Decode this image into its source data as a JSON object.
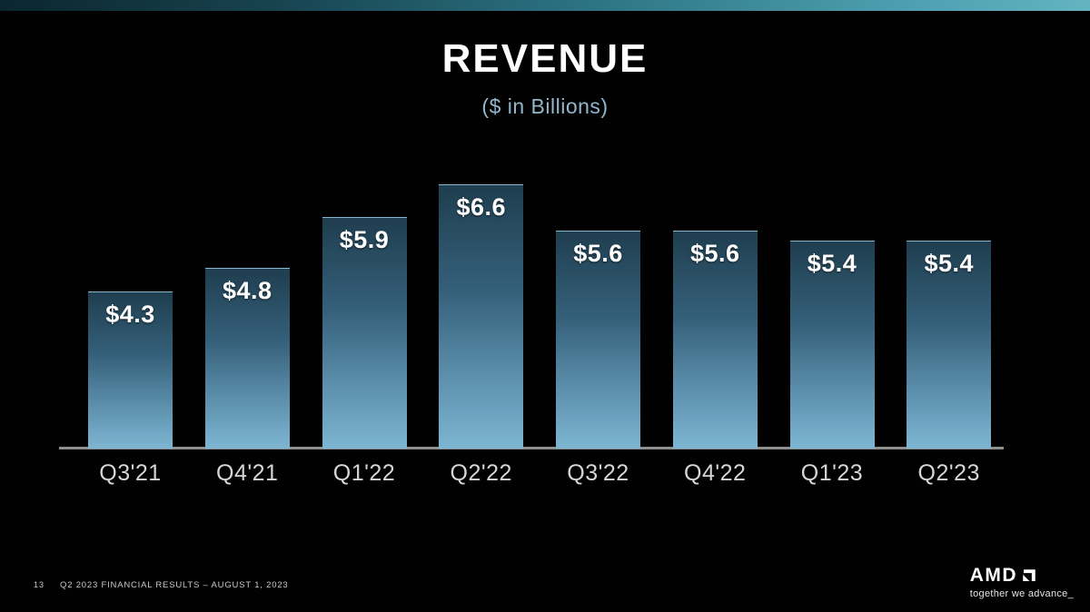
{
  "slide": {
    "title": "REVENUE",
    "subtitle": "($ in Billions)",
    "footer": {
      "page_number": "13",
      "text": "Q2 2023 FINANCIAL RESULTS – AUGUST 1, 2023"
    },
    "brand": {
      "logo_text": "AMD",
      "tagline": "together we advance_"
    }
  },
  "chart_data": {
    "type": "bar",
    "title": "REVENUE",
    "subtitle": "($ in Billions)",
    "categories": [
      "Q3'21",
      "Q4'21",
      "Q1'22",
      "Q2'22",
      "Q3'22",
      "Q4'22",
      "Q1'23",
      "Q2'23"
    ],
    "values": [
      4.3,
      4.8,
      5.9,
      6.6,
      5.6,
      5.6,
      5.4,
      5.4
    ],
    "data_labels": [
      "$4.3",
      "$4.8",
      "$5.9",
      "$6.6",
      "$5.6",
      "$5.6",
      "$5.4",
      "$5.4"
    ],
    "unit": "$ Billions",
    "xlabel": "",
    "ylabel": "",
    "ylim": [
      0,
      7
    ],
    "grid": false,
    "legend": false,
    "colors": {
      "background": "#010101",
      "bar_gradient_top": "#1f3e4f",
      "bar_gradient_upper_mid": "#35607a",
      "bar_gradient_lower_mid": "#5f93b0",
      "bar_gradient_bottom": "#7db6d2",
      "value_label": "#ffffff",
      "category_label": "#d6d6d6",
      "axis_line": "#8f8f8f",
      "subtitle_text": "#92b6cc",
      "header_band_left": "#0b262e",
      "header_band_right": "#63b3c1"
    }
  }
}
